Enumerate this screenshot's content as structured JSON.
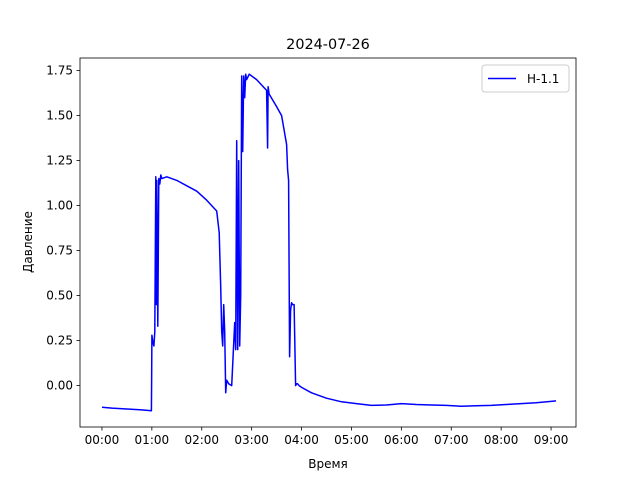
{
  "chart_data": {
    "type": "line",
    "title": "2024-07-26",
    "xlabel": "Время",
    "ylabel": "Давление",
    "xlim": [
      -0.44,
      9.5
    ],
    "ylim": [
      -0.23,
      1.82
    ],
    "grid": false,
    "legend_position": "top-right",
    "x_ticks": [
      {
        "value": 0,
        "label": "00:00"
      },
      {
        "value": 1,
        "label": "01:00"
      },
      {
        "value": 2,
        "label": "02:00"
      },
      {
        "value": 3,
        "label": "03:00"
      },
      {
        "value": 4,
        "label": "04:00"
      },
      {
        "value": 5,
        "label": "05:00"
      },
      {
        "value": 6,
        "label": "06:00"
      },
      {
        "value": 7,
        "label": "07:00"
      },
      {
        "value": 8,
        "label": "08:00"
      },
      {
        "value": 9,
        "label": "09:00"
      }
    ],
    "y_ticks": [
      {
        "value": 0.0,
        "label": "0.00"
      },
      {
        "value": 0.25,
        "label": "0.25"
      },
      {
        "value": 0.5,
        "label": "0.50"
      },
      {
        "value": 0.75,
        "label": "0.75"
      },
      {
        "value": 1.0,
        "label": "1.00"
      },
      {
        "value": 1.25,
        "label": "1.25"
      },
      {
        "value": 1.5,
        "label": "1.50"
      },
      {
        "value": 1.75,
        "label": "1.75"
      }
    ],
    "series": [
      {
        "name": "H-1.1",
        "color": "#0000ff",
        "x": [
          0.0,
          0.2,
          0.5,
          0.8,
          0.99,
          0.995,
          1.0,
          1.02,
          1.04,
          1.06,
          1.08,
          1.09,
          1.1,
          1.12,
          1.14,
          1.16,
          1.18,
          1.2,
          1.3,
          1.5,
          1.7,
          1.9,
          2.1,
          2.3,
          2.35,
          2.38,
          2.4,
          2.42,
          2.44,
          2.46,
          2.48,
          2.5,
          2.52,
          2.54,
          2.6,
          2.66,
          2.68,
          2.7,
          2.72,
          2.74,
          2.76,
          2.78,
          2.8,
          2.82,
          2.84,
          2.86,
          2.88,
          2.9,
          2.95,
          3.0,
          3.1,
          3.2,
          3.3,
          3.32,
          3.33,
          3.34,
          3.35,
          3.5,
          3.6,
          3.7,
          3.72,
          3.74,
          3.76,
          3.78,
          3.8,
          3.82,
          3.85,
          3.88,
          3.9,
          3.92,
          3.95,
          4.0,
          4.2,
          4.5,
          4.8,
          5.1,
          5.4,
          5.7,
          6.0,
          6.3,
          6.6,
          6.9,
          7.2,
          7.5,
          7.8,
          8.1,
          8.4,
          8.7,
          9.0,
          9.1
        ],
        "y": [
          -0.12,
          -0.125,
          -0.13,
          -0.135,
          -0.14,
          0.0,
          0.28,
          0.24,
          0.22,
          0.3,
          1.16,
          0.45,
          1.14,
          0.33,
          1.15,
          1.12,
          1.17,
          1.15,
          1.16,
          1.14,
          1.11,
          1.08,
          1.03,
          0.97,
          0.85,
          0.55,
          0.3,
          0.22,
          0.45,
          0.3,
          -0.04,
          0.03,
          0.02,
          0.01,
          0.0,
          0.35,
          0.2,
          1.36,
          0.2,
          1.25,
          0.22,
          0.5,
          1.72,
          1.3,
          1.72,
          1.6,
          1.73,
          1.7,
          1.73,
          1.72,
          1.7,
          1.67,
          1.64,
          1.32,
          1.66,
          1.64,
          1.62,
          1.55,
          1.5,
          1.34,
          1.2,
          1.14,
          0.16,
          0.42,
          0.46,
          0.45,
          0.45,
          0.0,
          0.01,
          0.01,
          0.0,
          -0.01,
          -0.04,
          -0.07,
          -0.09,
          -0.1,
          -0.11,
          -0.108,
          -0.1,
          -0.105,
          -0.108,
          -0.11,
          -0.115,
          -0.112,
          -0.11,
          -0.105,
          -0.1,
          -0.095,
          -0.088,
          -0.085
        ]
      }
    ]
  }
}
